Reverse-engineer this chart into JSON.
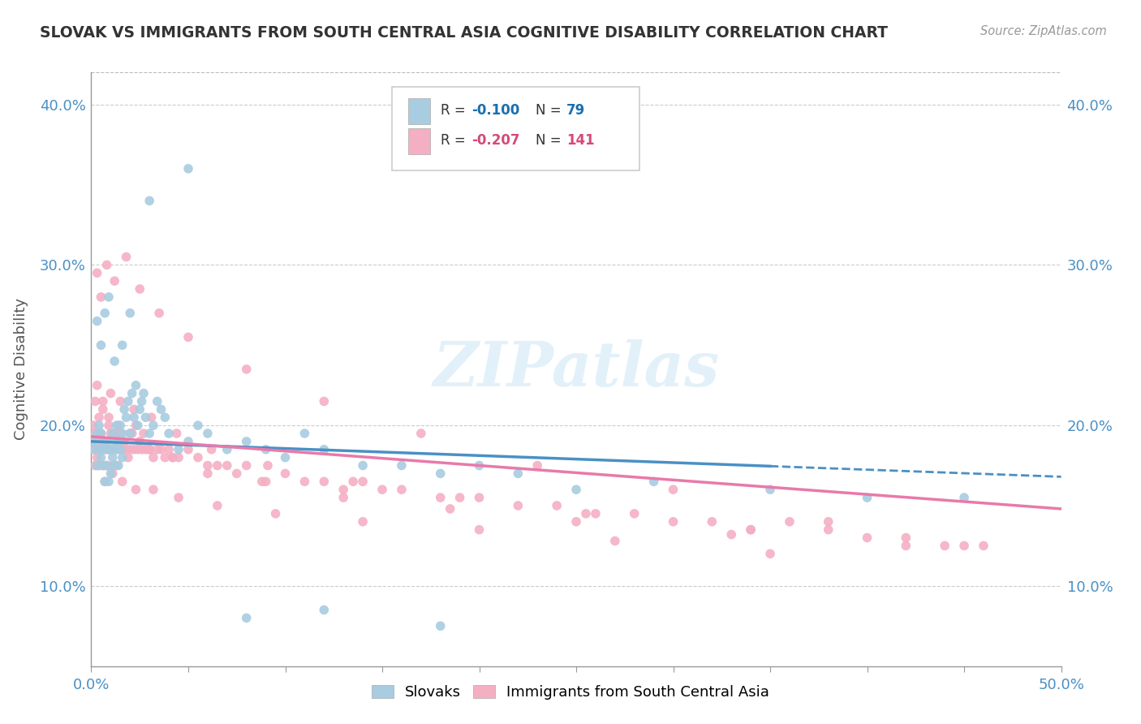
{
  "title": "SLOVAK VS IMMIGRANTS FROM SOUTH CENTRAL ASIA COGNITIVE DISABILITY CORRELATION CHART",
  "source": "Source: ZipAtlas.com",
  "ylabel": "Cognitive Disability",
  "xlim": [
    0.0,
    0.5
  ],
  "ylim": [
    0.05,
    0.42
  ],
  "xticks": [
    0.0,
    0.05,
    0.1,
    0.15,
    0.2,
    0.25,
    0.3,
    0.35,
    0.4,
    0.45,
    0.5
  ],
  "yticks": [
    0.1,
    0.2,
    0.3,
    0.4
  ],
  "ytick_labels": [
    "10.0%",
    "20.0%",
    "30.0%",
    "40.0%"
  ],
  "color_blue": "#a8cce0",
  "color_pink": "#f4afc3",
  "color_blue_line": "#4a90c4",
  "color_pink_line": "#e87aaa",
  "color_r_blue": "#1a6faf",
  "color_r_pink": "#d44a7a",
  "watermark": "ZIPatlas",
  "background_color": "#ffffff",
  "grid_color": "#cccccc",
  "scatter_blue_x": [
    0.001,
    0.002,
    0.003,
    0.003,
    0.004,
    0.004,
    0.005,
    0.005,
    0.006,
    0.006,
    0.007,
    0.007,
    0.008,
    0.008,
    0.009,
    0.009,
    0.01,
    0.01,
    0.011,
    0.011,
    0.012,
    0.012,
    0.013,
    0.013,
    0.014,
    0.014,
    0.015,
    0.015,
    0.016,
    0.016,
    0.017,
    0.018,
    0.019,
    0.02,
    0.021,
    0.022,
    0.023,
    0.024,
    0.025,
    0.026,
    0.027,
    0.028,
    0.03,
    0.032,
    0.034,
    0.036,
    0.038,
    0.04,
    0.045,
    0.05,
    0.055,
    0.06,
    0.07,
    0.08,
    0.09,
    0.1,
    0.11,
    0.12,
    0.14,
    0.16,
    0.18,
    0.2,
    0.22,
    0.25,
    0.29,
    0.35,
    0.4,
    0.45,
    0.003,
    0.005,
    0.007,
    0.009,
    0.012,
    0.016,
    0.02,
    0.03,
    0.05,
    0.08,
    0.12,
    0.18
  ],
  "scatter_blue_y": [
    0.19,
    0.185,
    0.195,
    0.175,
    0.185,
    0.2,
    0.18,
    0.195,
    0.19,
    0.175,
    0.185,
    0.165,
    0.19,
    0.175,
    0.185,
    0.165,
    0.185,
    0.17,
    0.18,
    0.195,
    0.19,
    0.175,
    0.185,
    0.2,
    0.175,
    0.19,
    0.185,
    0.2,
    0.18,
    0.195,
    0.21,
    0.205,
    0.215,
    0.195,
    0.22,
    0.205,
    0.225,
    0.2,
    0.21,
    0.215,
    0.22,
    0.205,
    0.195,
    0.2,
    0.215,
    0.21,
    0.205,
    0.195,
    0.185,
    0.19,
    0.2,
    0.195,
    0.185,
    0.19,
    0.185,
    0.18,
    0.195,
    0.185,
    0.175,
    0.175,
    0.17,
    0.175,
    0.17,
    0.16,
    0.165,
    0.16,
    0.155,
    0.155,
    0.265,
    0.25,
    0.27,
    0.28,
    0.24,
    0.25,
    0.27,
    0.34,
    0.36,
    0.08,
    0.085,
    0.075
  ],
  "scatter_pink_x": [
    0.001,
    0.001,
    0.002,
    0.002,
    0.003,
    0.003,
    0.004,
    0.004,
    0.005,
    0.005,
    0.006,
    0.006,
    0.007,
    0.007,
    0.008,
    0.008,
    0.009,
    0.009,
    0.01,
    0.01,
    0.011,
    0.011,
    0.012,
    0.012,
    0.013,
    0.013,
    0.014,
    0.015,
    0.015,
    0.016,
    0.017,
    0.018,
    0.019,
    0.02,
    0.021,
    0.022,
    0.023,
    0.024,
    0.025,
    0.026,
    0.027,
    0.028,
    0.03,
    0.032,
    0.034,
    0.036,
    0.038,
    0.04,
    0.042,
    0.045,
    0.05,
    0.055,
    0.06,
    0.065,
    0.07,
    0.075,
    0.08,
    0.09,
    0.1,
    0.11,
    0.12,
    0.13,
    0.14,
    0.15,
    0.16,
    0.18,
    0.2,
    0.22,
    0.24,
    0.26,
    0.28,
    0.3,
    0.32,
    0.34,
    0.36,
    0.38,
    0.4,
    0.42,
    0.44,
    0.46,
    0.003,
    0.005,
    0.008,
    0.012,
    0.018,
    0.025,
    0.035,
    0.05,
    0.08,
    0.12,
    0.17,
    0.23,
    0.3,
    0.38,
    0.45,
    0.004,
    0.007,
    0.011,
    0.016,
    0.023,
    0.032,
    0.045,
    0.065,
    0.095,
    0.14,
    0.2,
    0.27,
    0.35,
    0.002,
    0.004,
    0.006,
    0.009,
    0.014,
    0.02,
    0.03,
    0.042,
    0.06,
    0.088,
    0.13,
    0.185,
    0.25,
    0.33,
    0.42,
    0.003,
    0.006,
    0.01,
    0.015,
    0.022,
    0.031,
    0.044,
    0.062,
    0.091,
    0.135,
    0.19,
    0.255,
    0.34
  ],
  "scatter_pink_y": [
    0.2,
    0.185,
    0.195,
    0.175,
    0.19,
    0.18,
    0.195,
    0.175,
    0.185,
    0.195,
    0.185,
    0.175,
    0.19,
    0.175,
    0.185,
    0.175,
    0.185,
    0.2,
    0.185,
    0.195,
    0.185,
    0.175,
    0.195,
    0.175,
    0.185,
    0.175,
    0.195,
    0.185,
    0.195,
    0.185,
    0.19,
    0.185,
    0.18,
    0.185,
    0.195,
    0.185,
    0.2,
    0.185,
    0.19,
    0.185,
    0.195,
    0.185,
    0.185,
    0.18,
    0.185,
    0.185,
    0.18,
    0.185,
    0.18,
    0.18,
    0.185,
    0.18,
    0.175,
    0.175,
    0.175,
    0.17,
    0.175,
    0.165,
    0.17,
    0.165,
    0.165,
    0.16,
    0.165,
    0.16,
    0.16,
    0.155,
    0.155,
    0.15,
    0.15,
    0.145,
    0.145,
    0.14,
    0.14,
    0.135,
    0.14,
    0.135,
    0.13,
    0.13,
    0.125,
    0.125,
    0.295,
    0.28,
    0.3,
    0.29,
    0.305,
    0.285,
    0.27,
    0.255,
    0.235,
    0.215,
    0.195,
    0.175,
    0.16,
    0.14,
    0.125,
    0.175,
    0.165,
    0.17,
    0.165,
    0.16,
    0.16,
    0.155,
    0.15,
    0.145,
    0.14,
    0.135,
    0.128,
    0.12,
    0.215,
    0.205,
    0.21,
    0.205,
    0.2,
    0.195,
    0.185,
    0.18,
    0.17,
    0.165,
    0.155,
    0.148,
    0.14,
    0.132,
    0.125,
    0.225,
    0.215,
    0.22,
    0.215,
    0.21,
    0.205,
    0.195,
    0.185,
    0.175,
    0.165,
    0.155,
    0.145,
    0.135
  ],
  "trendline_blue_x0": 0.0,
  "trendline_blue_x1": 0.5,
  "trendline_blue_y0": 0.19,
  "trendline_blue_y1": 0.168,
  "trendline_blue_solid_end": 0.35,
  "trendline_pink_x0": 0.0,
  "trendline_pink_x1": 0.5,
  "trendline_pink_y0": 0.193,
  "trendline_pink_y1": 0.148
}
